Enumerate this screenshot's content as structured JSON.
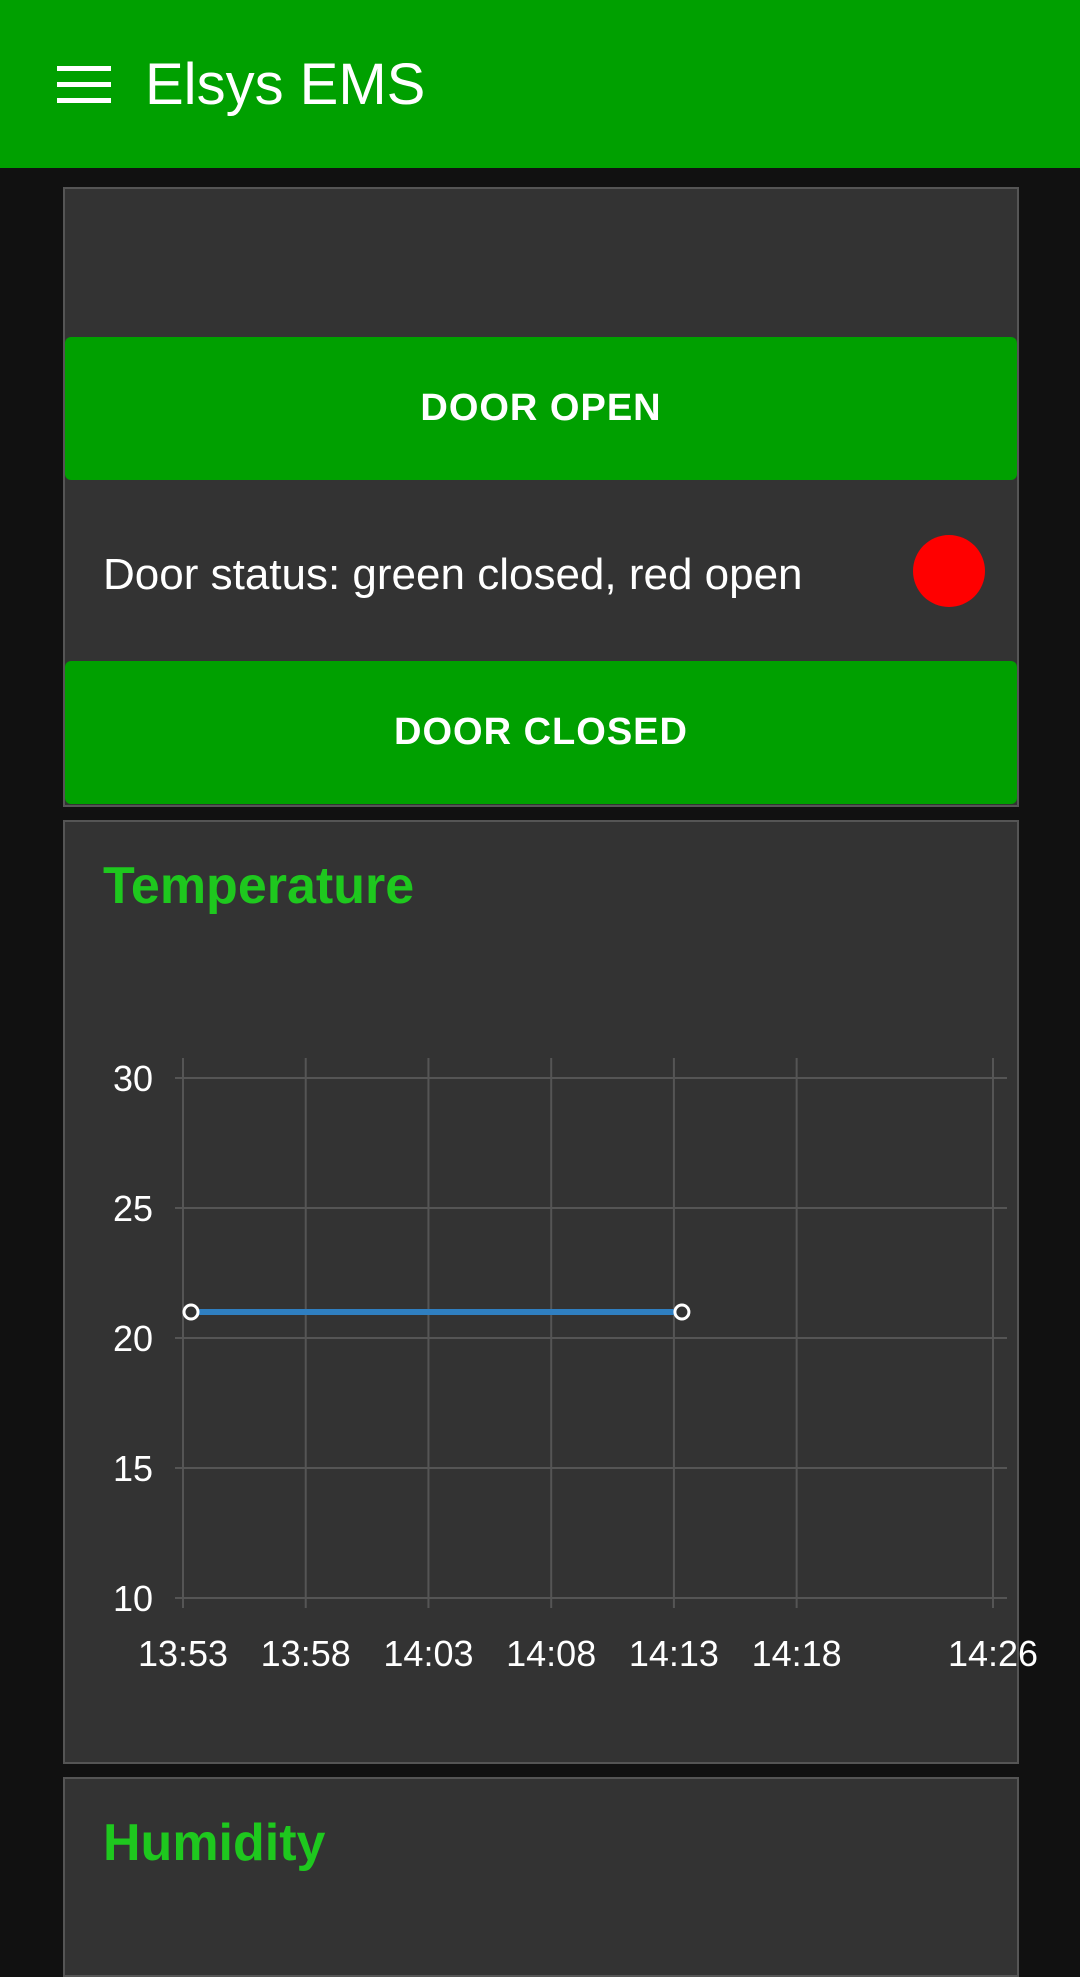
{
  "app": {
    "title": "Elsys EMS"
  },
  "door": {
    "open_button": "DOOR OPEN",
    "closed_button": "DOOR CLOSED",
    "status_label": "Door status: green closed, red open",
    "status_color": "#ff0000"
  },
  "temperature": {
    "title": "Temperature"
  },
  "humidity": {
    "title": "Humidity"
  },
  "colors": {
    "accent": "#00a000",
    "title_green": "#1ec81e",
    "series": "#2f7fc1"
  },
  "chart_data": {
    "type": "line",
    "title": "Temperature",
    "xlabel": "",
    "ylabel": "",
    "x_ticks": [
      "13:53",
      "13:58",
      "14:03",
      "14:08",
      "14:13",
      "14:18",
      "14:26"
    ],
    "y_ticks": [
      30,
      25,
      20,
      15,
      10
    ],
    "ylim": [
      10,
      30
    ],
    "xlim": [
      "13:53",
      "14:26"
    ],
    "grid": true,
    "series": [
      {
        "points": [
          {
            "x": "13:53",
            "y": 21
          },
          {
            "x": "14:13",
            "y": 21
          }
        ]
      }
    ]
  }
}
